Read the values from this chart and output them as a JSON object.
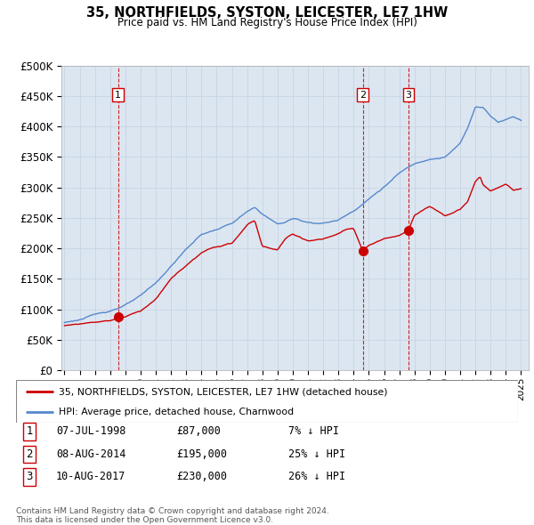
{
  "title": "35, NORTHFIELDS, SYSTON, LEICESTER, LE7 1HW",
  "subtitle": "Price paid vs. HM Land Registry's House Price Index (HPI)",
  "ylabel_ticks": [
    "£0",
    "£50K",
    "£100K",
    "£150K",
    "£200K",
    "£250K",
    "£300K",
    "£350K",
    "£400K",
    "£450K",
    "£500K"
  ],
  "ytick_values": [
    0,
    50000,
    100000,
    150000,
    200000,
    250000,
    300000,
    350000,
    400000,
    450000,
    500000
  ],
  "ylim": [
    0,
    500000
  ],
  "xlim_start": 1994.8,
  "xlim_end": 2025.5,
  "background_color": "#dce6f1",
  "hpi_line_color": "#5588cc",
  "price_line_color": "#cc0000",
  "vline_color": "#cc0000",
  "hpi_curve_points": [
    [
      1995,
      78000
    ],
    [
      1996,
      83000
    ],
    [
      1997,
      90000
    ],
    [
      1998,
      97000
    ],
    [
      1999,
      107000
    ],
    [
      2000,
      120000
    ],
    [
      2001,
      140000
    ],
    [
      2002,
      168000
    ],
    [
      2003,
      196000
    ],
    [
      2004,
      220000
    ],
    [
      2005,
      228000
    ],
    [
      2006,
      238000
    ],
    [
      2007,
      256000
    ],
    [
      2007.5,
      262000
    ],
    [
      2008,
      252000
    ],
    [
      2009,
      235000
    ],
    [
      2009.5,
      238000
    ],
    [
      2010,
      244000
    ],
    [
      2011,
      238000
    ],
    [
      2012,
      237000
    ],
    [
      2013,
      242000
    ],
    [
      2014,
      258000
    ],
    [
      2015,
      278000
    ],
    [
      2016,
      298000
    ],
    [
      2017,
      320000
    ],
    [
      2018,
      335000
    ],
    [
      2019,
      345000
    ],
    [
      2020,
      348000
    ],
    [
      2021,
      370000
    ],
    [
      2021.5,
      395000
    ],
    [
      2022,
      430000
    ],
    [
      2022.5,
      430000
    ],
    [
      2023,
      415000
    ],
    [
      2023.5,
      405000
    ],
    [
      2024,
      410000
    ],
    [
      2024.5,
      415000
    ],
    [
      2025,
      410000
    ]
  ],
  "red_curve_points": [
    [
      1995,
      73000
    ],
    [
      1996,
      76000
    ],
    [
      1997,
      80000
    ],
    [
      1998,
      83000
    ],
    [
      1998.52,
      87000
    ],
    [
      1999,
      90000
    ],
    [
      2000,
      100000
    ],
    [
      2001,
      120000
    ],
    [
      2002,
      153000
    ],
    [
      2003,
      175000
    ],
    [
      2004,
      195000
    ],
    [
      2005,
      205000
    ],
    [
      2006,
      210000
    ],
    [
      2007,
      240000
    ],
    [
      2007.5,
      248000
    ],
    [
      2008,
      205000
    ],
    [
      2009,
      200000
    ],
    [
      2009.5,
      218000
    ],
    [
      2010,
      225000
    ],
    [
      2011,
      215000
    ],
    [
      2012,
      218000
    ],
    [
      2013,
      225000
    ],
    [
      2013.5,
      232000
    ],
    [
      2014,
      234000
    ],
    [
      2014.6,
      195000
    ],
    [
      2014.65,
      197000
    ],
    [
      2015,
      205000
    ],
    [
      2016,
      215000
    ],
    [
      2017,
      220000
    ],
    [
      2017.61,
      230000
    ],
    [
      2018,
      255000
    ],
    [
      2019,
      270000
    ],
    [
      2020,
      255000
    ],
    [
      2021,
      265000
    ],
    [
      2021.5,
      278000
    ],
    [
      2022,
      310000
    ],
    [
      2022.3,
      318000
    ],
    [
      2022.5,
      305000
    ],
    [
      2023,
      295000
    ],
    [
      2023.5,
      300000
    ],
    [
      2024,
      305000
    ],
    [
      2024.5,
      295000
    ],
    [
      2025,
      298000
    ]
  ],
  "sale_markers": [
    {
      "date_year": 1998.52,
      "price": 87000,
      "label": "1"
    },
    {
      "date_year": 2014.6,
      "price": 195000,
      "label": "2"
    },
    {
      "date_year": 2017.61,
      "price": 230000,
      "label": "3"
    }
  ],
  "legend_label_red": "35, NORTHFIELDS, SYSTON, LEICESTER, LE7 1HW (detached house)",
  "legend_label_blue": "HPI: Average price, detached house, Charnwood",
  "table_rows": [
    {
      "num": "1",
      "date": "07-JUL-1998",
      "price": "£87,000",
      "pct": "7% ↓ HPI"
    },
    {
      "num": "2",
      "date": "08-AUG-2014",
      "price": "£195,000",
      "pct": "25% ↓ HPI"
    },
    {
      "num": "3",
      "date": "10-AUG-2017",
      "price": "£230,000",
      "pct": "26% ↓ HPI"
    }
  ],
  "footer": "Contains HM Land Registry data © Crown copyright and database right 2024.\nThis data is licensed under the Open Government Licence v3.0."
}
